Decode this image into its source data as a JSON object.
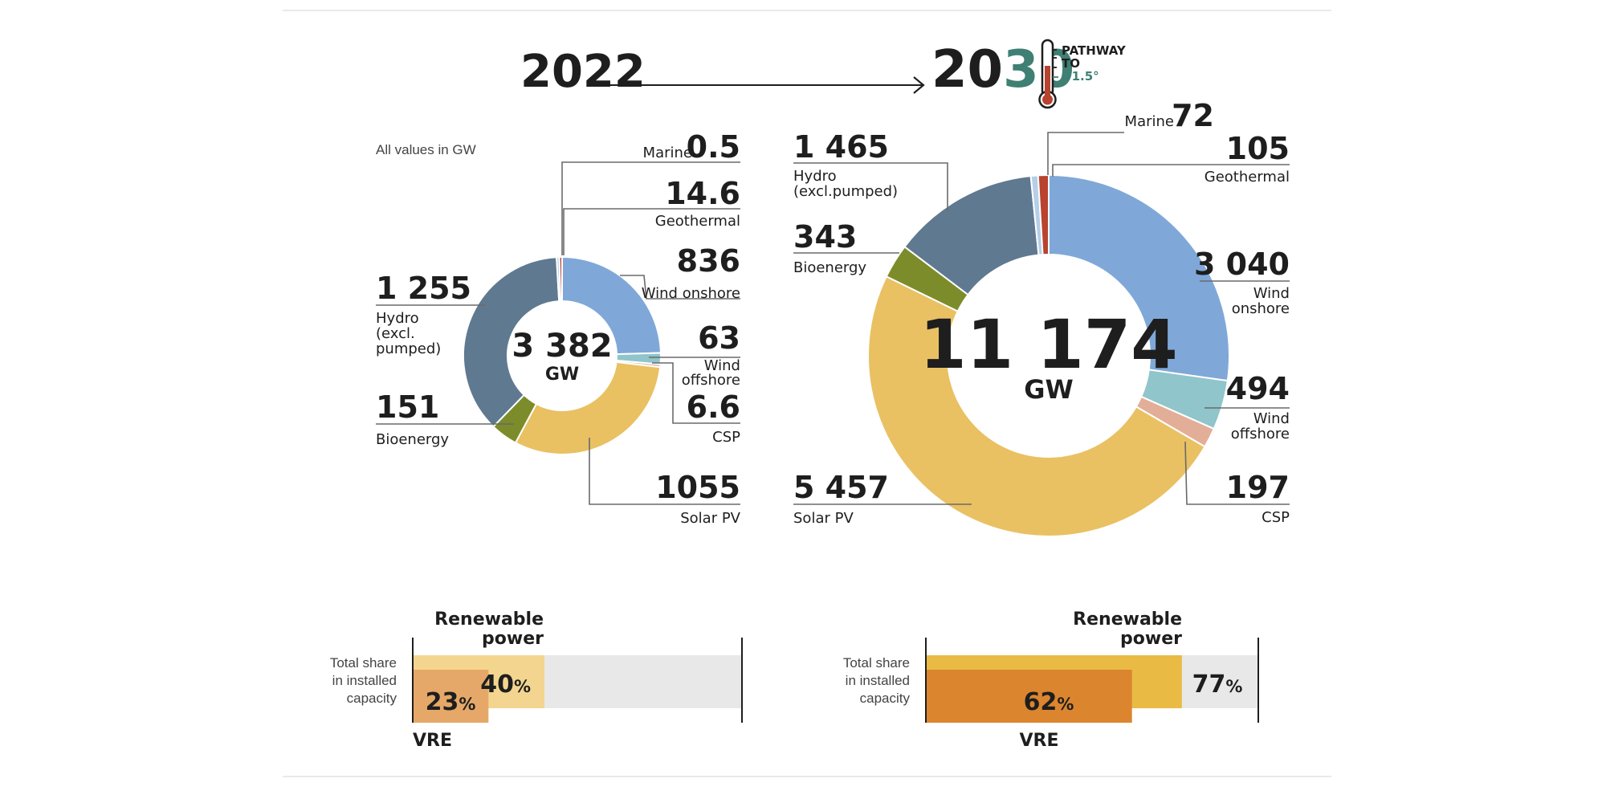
{
  "header": {
    "year_start": "2022",
    "year_end_a": "20",
    "year_end_b": "30",
    "pathway_line1": "PATHWAY",
    "pathway_line2": "TO",
    "pathway_line3": "+1.5°",
    "units_note": "All values in GW"
  },
  "colors": {
    "hydro": "#5f7990",
    "bioenergy": "#7c8c2a",
    "solar_pv": "#e9c163",
    "csp": "#e3ae97",
    "wind_offshore": "#8fc5cb",
    "wind_onshore": "#7fa8d8",
    "geothermal": "#b8432f",
    "marine": "#b5cfe8",
    "teal": "#3f7f74",
    "bar_bg": "#e8e8e8",
    "bar_light": "#f3d58f",
    "bar_orange_light": "#e6a868",
    "bar_yellow": "#e9bb45",
    "bar_orange": "#dc852f"
  },
  "chart_data": [
    {
      "type": "pie",
      "id": "donut_2022",
      "title": "2022",
      "total": "3 382",
      "unit": "GW",
      "segments": [
        {
          "key": "wind_onshore",
          "name": "Wind onshore",
          "value": 836,
          "label": "836"
        },
        {
          "key": "wind_offshore",
          "name": "Wind offshore",
          "value": 63,
          "label": "63"
        },
        {
          "key": "csp",
          "name": "CSP",
          "value": 6.6,
          "label": "6.6"
        },
        {
          "key": "solar_pv",
          "name": "Solar PV",
          "value": 1055,
          "label": "1055"
        },
        {
          "key": "bioenergy",
          "name": "Bioenergy",
          "value": 151,
          "label": "151"
        },
        {
          "key": "hydro",
          "name": "Hydro (excl. pumped)",
          "value": 1255,
          "label": "1 255"
        },
        {
          "key": "marine",
          "name": "Marine",
          "value": 0.5,
          "label": "0.5"
        },
        {
          "key": "geothermal",
          "name": "Geothermal",
          "value": 14.6,
          "label": "14.6"
        }
      ]
    },
    {
      "type": "pie",
      "id": "donut_2030",
      "title": "2030",
      "total": "11 174",
      "unit": "GW",
      "segments": [
        {
          "key": "wind_onshore",
          "name": "Wind onshore",
          "value": 3040,
          "label": "3 040"
        },
        {
          "key": "wind_offshore",
          "name": "Wind offshore",
          "value": 494,
          "label": "494"
        },
        {
          "key": "csp",
          "name": "CSP",
          "value": 197,
          "label": "197"
        },
        {
          "key": "solar_pv",
          "name": "Solar PV",
          "value": 5457,
          "label": "5 457"
        },
        {
          "key": "bioenergy",
          "name": "Bioenergy",
          "value": 343,
          "label": "343"
        },
        {
          "key": "hydro",
          "name": "Hydro (excl.pumped)",
          "value": 1465,
          "label": "1 465"
        },
        {
          "key": "marine",
          "name": "Marine",
          "value": 72,
          "label": "72"
        },
        {
          "key": "geothermal",
          "name": "Geothermal",
          "value": 105,
          "label": "105"
        }
      ]
    },
    {
      "type": "bar",
      "id": "share_2022",
      "renewable_label_1": "Renewable",
      "renewable_label_2": "power",
      "row_label": [
        "Total share",
        "in installed",
        "capacity"
      ],
      "vre_label": "VRE",
      "renewable_share": 40,
      "vre_share": 23,
      "renewable_text": "40",
      "vre_text": "23",
      "pct_sign": "%"
    },
    {
      "type": "bar",
      "id": "share_2030",
      "renewable_label_1": "Renewable",
      "renewable_label_2": "power",
      "row_label": [
        "Total share",
        "in installed",
        "capacity"
      ],
      "vre_label": "VRE",
      "renewable_share": 77,
      "vre_share": 62,
      "renewable_text": "77",
      "vre_text": "62",
      "pct_sign": "%"
    }
  ]
}
